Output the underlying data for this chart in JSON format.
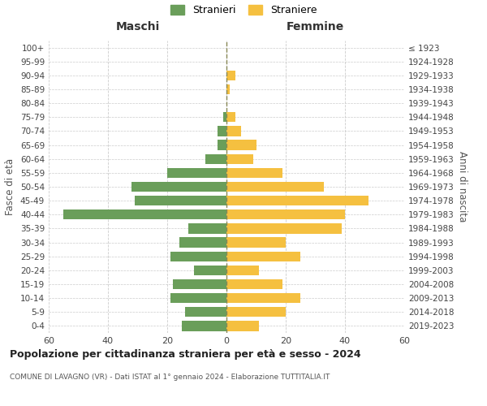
{
  "age_groups": [
    "0-4",
    "5-9",
    "10-14",
    "15-19",
    "20-24",
    "25-29",
    "30-34",
    "35-39",
    "40-44",
    "45-49",
    "50-54",
    "55-59",
    "60-64",
    "65-69",
    "70-74",
    "75-79",
    "80-84",
    "85-89",
    "90-94",
    "95-99",
    "100+"
  ],
  "birth_years": [
    "2019-2023",
    "2014-2018",
    "2009-2013",
    "2004-2008",
    "1999-2003",
    "1994-1998",
    "1989-1993",
    "1984-1988",
    "1979-1983",
    "1974-1978",
    "1969-1973",
    "1964-1968",
    "1959-1963",
    "1954-1958",
    "1949-1953",
    "1944-1948",
    "1939-1943",
    "1934-1938",
    "1929-1933",
    "1924-1928",
    "≤ 1923"
  ],
  "males": [
    15,
    14,
    19,
    18,
    11,
    19,
    16,
    13,
    55,
    31,
    32,
    20,
    7,
    3,
    3,
    1,
    0,
    0,
    0,
    0,
    0
  ],
  "females": [
    11,
    20,
    25,
    19,
    11,
    25,
    20,
    39,
    40,
    48,
    33,
    19,
    9,
    10,
    5,
    3,
    0,
    1,
    3,
    0,
    0
  ],
  "male_color": "#6a9e5a",
  "female_color": "#f5c040",
  "background_color": "#ffffff",
  "grid_color": "#cccccc",
  "title": "Popolazione per cittadinanza straniera per età e sesso - 2024",
  "subtitle": "COMUNE DI LAVAGNO (VR) - Dati ISTAT al 1° gennaio 2024 - Elaborazione TUTTITALIA.IT",
  "ylabel_left": "Fasce di età",
  "ylabel_right": "Anni di nascita",
  "xlabel_left": "Maschi",
  "xlabel_right": "Femmine",
  "legend_males": "Stranieri",
  "legend_females": "Straniere",
  "xlim": 60,
  "figsize": [
    6.0,
    5.0
  ],
  "dpi": 100
}
